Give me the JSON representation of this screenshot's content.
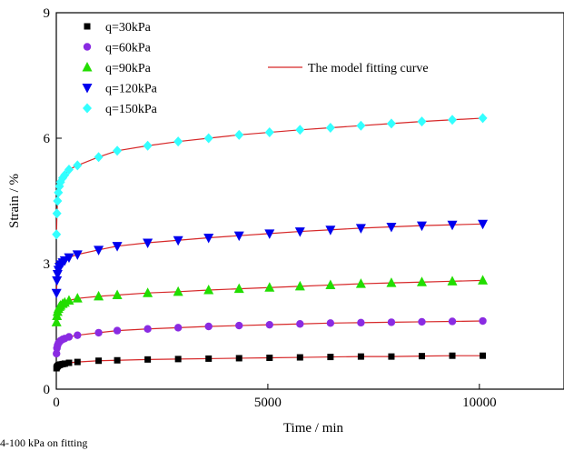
{
  "chart_data": {
    "type": "scatter",
    "xlabel": "Time / min",
    "ylabel": "Strain / %",
    "xlim": [
      0,
      12000
    ],
    "ylim": [
      0,
      9
    ],
    "xticks": [
      "0",
      "5000",
      "10000"
    ],
    "yticks": [
      "0",
      "3",
      "6",
      "9"
    ],
    "grid": false,
    "legend_position": "top-left",
    "fit_label": "The model fitting curve",
    "fit_color": "#d62728",
    "x": [
      5,
      15,
      30,
      50,
      75,
      100,
      150,
      200,
      300,
      500,
      1000,
      1440,
      2160,
      2880,
      3600,
      4320,
      5040,
      5760,
      6480,
      7200,
      7920,
      8640,
      9360,
      10080
    ],
    "series": [
      {
        "name": "q=30kPa",
        "marker": "square",
        "color": "#000000",
        "values": [
          0.5,
          0.53,
          0.55,
          0.57,
          0.58,
          0.59,
          0.6,
          0.61,
          0.63,
          0.65,
          0.68,
          0.69,
          0.71,
          0.72,
          0.73,
          0.74,
          0.75,
          0.76,
          0.77,
          0.78,
          0.78,
          0.79,
          0.8,
          0.8
        ]
      },
      {
        "name": "q=60kPa",
        "marker": "circle",
        "color": "#8a2be2",
        "values": [
          0.85,
          0.98,
          1.05,
          1.1,
          1.13,
          1.16,
          1.19,
          1.21,
          1.25,
          1.29,
          1.35,
          1.4,
          1.44,
          1.47,
          1.5,
          1.52,
          1.54,
          1.56,
          1.58,
          1.59,
          1.6,
          1.61,
          1.62,
          1.63
        ]
      },
      {
        "name": "q=90kPa",
        "marker": "triangle-up",
        "color": "#22dd00",
        "values": [
          1.6,
          1.75,
          1.85,
          1.92,
          1.97,
          2.0,
          2.04,
          2.07,
          2.12,
          2.17,
          2.22,
          2.25,
          2.3,
          2.33,
          2.37,
          2.4,
          2.43,
          2.46,
          2.49,
          2.52,
          2.54,
          2.56,
          2.58,
          2.6
        ]
      },
      {
        "name": "q=120kPa",
        "marker": "triangle-down",
        "color": "#0000ee",
        "values": [
          2.3,
          2.6,
          2.75,
          2.85,
          2.92,
          2.98,
          3.03,
          3.08,
          3.15,
          3.22,
          3.33,
          3.42,
          3.5,
          3.56,
          3.62,
          3.67,
          3.72,
          3.77,
          3.81,
          3.85,
          3.88,
          3.91,
          3.93,
          3.95
        ]
      },
      {
        "name": "q=150kPa",
        "marker": "diamond",
        "color": "#33ffff",
        "values": [
          3.7,
          4.2,
          4.5,
          4.7,
          4.85,
          4.95,
          5.05,
          5.12,
          5.25,
          5.35,
          5.55,
          5.7,
          5.82,
          5.92,
          6.0,
          6.08,
          6.14,
          6.2,
          6.25,
          6.3,
          6.35,
          6.4,
          6.44,
          6.48
        ]
      }
    ]
  },
  "caption": {
    "text": "4-100 kPa on fitting"
  }
}
